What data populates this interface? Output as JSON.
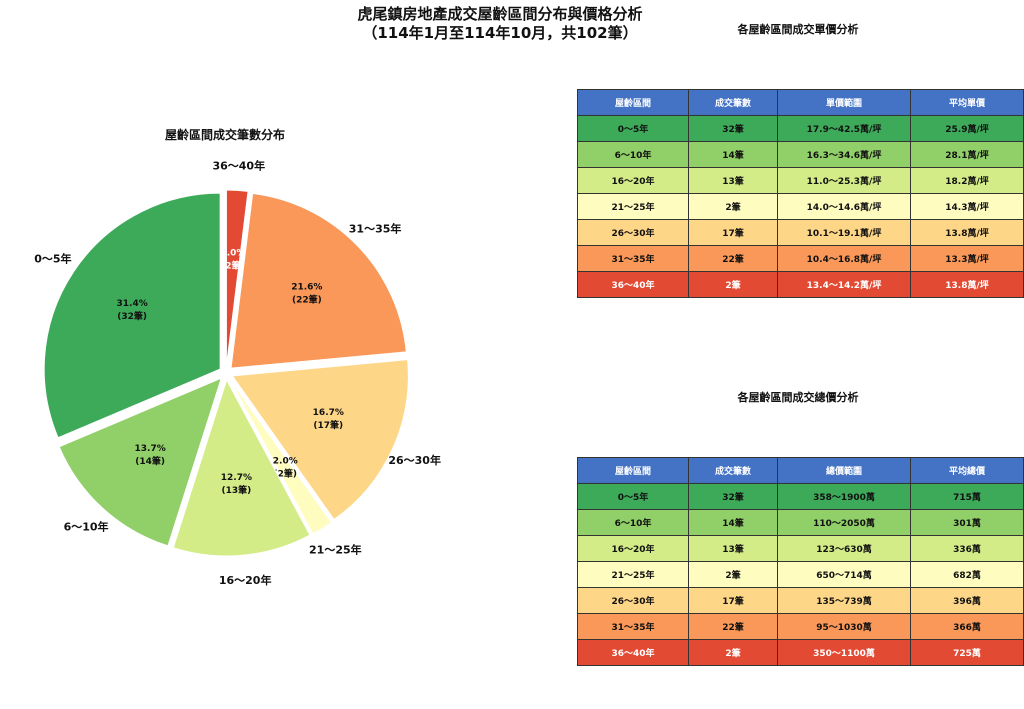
{
  "title": {
    "line1": "虎尾鎮房地產成交屋齡區間分布與價格分析",
    "line2": "（114年1月至114年10月，共102筆）"
  },
  "chart_data": {
    "type": "pie",
    "title": "屋齡區間成交筆數分布",
    "total": 102,
    "start_angle": "top, clockwise",
    "exploded": true,
    "slices": [
      {
        "label": "36～40年",
        "count": 2,
        "percent": "2.0%",
        "count_label": "(2筆)",
        "color": "#e34a33"
      },
      {
        "label": "31～35年",
        "count": 22,
        "percent": "21.6%",
        "count_label": "(22筆)",
        "color": "#f99858"
      },
      {
        "label": "26～30年",
        "count": 17,
        "percent": "16.7%",
        "count_label": "(17筆)",
        "color": "#fed687"
      },
      {
        "label": "21～25年",
        "count": 2,
        "percent": "2.0%",
        "count_label": "(2筆)",
        "color": "#fefcbf"
      },
      {
        "label": "16～20年",
        "count": 13,
        "percent": "12.7%",
        "count_label": "(13筆)",
        "color": "#d3ec87"
      },
      {
        "label": "6～10年",
        "count": 14,
        "percent": "13.7%",
        "count_label": "(14筆)",
        "color": "#91cf69"
      },
      {
        "label": "0～5年",
        "count": 32,
        "percent": "31.4%",
        "count_label": "(32筆)",
        "color": "#3daa5a"
      }
    ]
  },
  "unit_price_table": {
    "title": "各屋齡區間成交單價分析",
    "headers": [
      "屋齡區間",
      "成交筆數",
      "單價範圍",
      "平均單價"
    ],
    "rows": [
      {
        "cells": [
          "0～5年",
          "32筆",
          "17.9～42.5萬/坪",
          "25.9萬/坪"
        ],
        "bg": "#3daa5a",
        "light": false
      },
      {
        "cells": [
          "6～10年",
          "14筆",
          "16.3～34.6萬/坪",
          "28.1萬/坪"
        ],
        "bg": "#91cf69",
        "light": false
      },
      {
        "cells": [
          "16～20年",
          "13筆",
          "11.0～25.3萬/坪",
          "18.2萬/坪"
        ],
        "bg": "#d3ec87",
        "light": false
      },
      {
        "cells": [
          "21～25年",
          "2筆",
          "14.0～14.6萬/坪",
          "14.3萬/坪"
        ],
        "bg": "#fefcbf",
        "light": false
      },
      {
        "cells": [
          "26～30年",
          "17筆",
          "10.1～19.1萬/坪",
          "13.8萬/坪"
        ],
        "bg": "#fed687",
        "light": false
      },
      {
        "cells": [
          "31～35年",
          "22筆",
          "10.4～16.8萬/坪",
          "13.3萬/坪"
        ],
        "bg": "#f99858",
        "light": false
      },
      {
        "cells": [
          "36～40年",
          "2筆",
          "13.4～14.2萬/坪",
          "13.8萬/坪"
        ],
        "bg": "#e34a33",
        "light": true
      }
    ]
  },
  "total_price_table": {
    "title": "各屋齡區間成交總價分析",
    "headers": [
      "屋齡區間",
      "成交筆數",
      "總價範圍",
      "平均總價"
    ],
    "rows": [
      {
        "cells": [
          "0～5年",
          "32筆",
          "358～1900萬",
          "715萬"
        ],
        "bg": "#3daa5a",
        "light": false
      },
      {
        "cells": [
          "6～10年",
          "14筆",
          "110～2050萬",
          "301萬"
        ],
        "bg": "#91cf69",
        "light": false
      },
      {
        "cells": [
          "16～20年",
          "13筆",
          "123～630萬",
          "336萬"
        ],
        "bg": "#d3ec87",
        "light": false
      },
      {
        "cells": [
          "21～25年",
          "2筆",
          "650～714萬",
          "682萬"
        ],
        "bg": "#fefcbf",
        "light": false
      },
      {
        "cells": [
          "26～30年",
          "17筆",
          "135～739萬",
          "396萬"
        ],
        "bg": "#fed687",
        "light": false
      },
      {
        "cells": [
          "31～35年",
          "22筆",
          "95～1030萬",
          "366萬"
        ],
        "bg": "#f99858",
        "light": false
      },
      {
        "cells": [
          "36～40年",
          "2筆",
          "350～1100萬",
          "725萬"
        ],
        "bg": "#e34a33",
        "light": true
      }
    ]
  }
}
